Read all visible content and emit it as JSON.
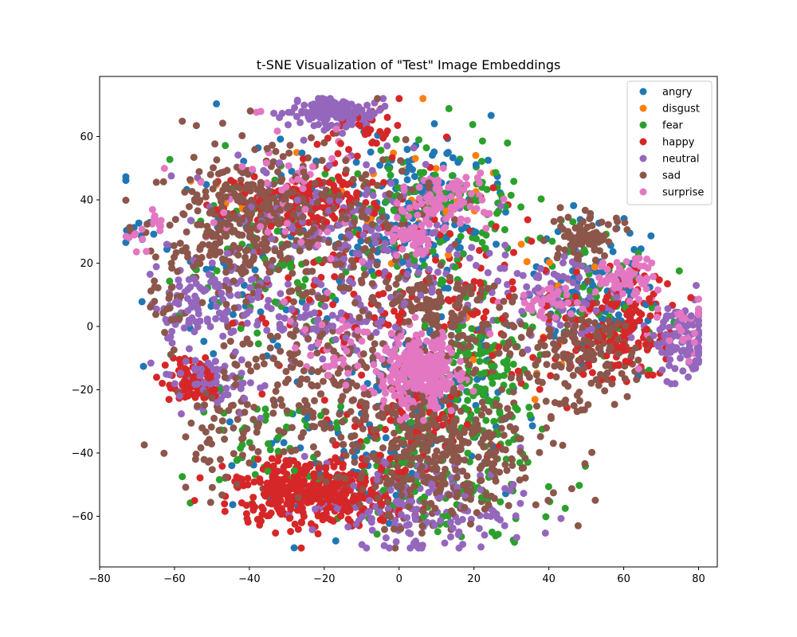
{
  "chart_data": {
    "type": "scatter",
    "title": "t-SNE Visualization of \"Test\" Image Embeddings",
    "xlabel": "",
    "ylabel": "",
    "xlim": [
      -80,
      85
    ],
    "ylim": [
      -76,
      79
    ],
    "xticks": [
      -80,
      -60,
      -40,
      -20,
      0,
      20,
      40,
      60,
      80
    ],
    "yticks": [
      -60,
      -40,
      -20,
      0,
      20,
      40,
      60
    ],
    "grid": false,
    "legend_position": "top-right",
    "series": [
      {
        "name": "angry",
        "color": "#1f77b4",
        "clusters": [
          {
            "cx": 5,
            "cy": 38,
            "sx": 9,
            "sy": 12,
            "n": 160
          },
          {
            "cx": 50,
            "cy": 12,
            "sx": 8,
            "sy": 12,
            "n": 100
          },
          {
            "cx": 10,
            "cy": -18,
            "sx": 10,
            "sy": 10,
            "n": 110
          },
          {
            "cx": -35,
            "cy": 22,
            "sx": 14,
            "sy": 18,
            "n": 90
          },
          {
            "cx": -15,
            "cy": -40,
            "sx": 16,
            "sy": 12,
            "n": 80
          },
          {
            "cx": -72,
            "cy": 29,
            "sx": 1.5,
            "sy": 2,
            "n": 10
          }
        ]
      },
      {
        "name": "disgust",
        "color": "#ff7f0e",
        "clusters": [
          {
            "cx": 5,
            "cy": 40,
            "sx": 10,
            "sy": 12,
            "n": 25
          },
          {
            "cx": 30,
            "cy": 20,
            "sx": 10,
            "sy": 10,
            "n": 12
          },
          {
            "cx": 35,
            "cy": -12,
            "sx": 10,
            "sy": 8,
            "n": 8
          },
          {
            "cx": -45,
            "cy": 40,
            "sx": 8,
            "sy": 6,
            "n": 8
          }
        ]
      },
      {
        "name": "fear",
        "color": "#2ca02c",
        "clusters": [
          {
            "cx": 22,
            "cy": -15,
            "sx": 8,
            "sy": 12,
            "n": 160
          },
          {
            "cx": 10,
            "cy": 35,
            "sx": 12,
            "sy": 12,
            "n": 130
          },
          {
            "cx": 10,
            "cy": -45,
            "sx": 14,
            "sy": 12,
            "n": 120
          },
          {
            "cx": -35,
            "cy": 25,
            "sx": 14,
            "sy": 18,
            "n": 90
          },
          {
            "cx": 50,
            "cy": 10,
            "sx": 10,
            "sy": 14,
            "n": 60
          },
          {
            "cx": -35,
            "cy": -40,
            "sx": 10,
            "sy": 10,
            "n": 50
          }
        ]
      },
      {
        "name": "happy",
        "color": "#d62728",
        "clusters": [
          {
            "cx": -22,
            "cy": -52,
            "sx": 11,
            "sy": 5,
            "n": 420
          },
          {
            "cx": -55,
            "cy": -18,
            "sx": 4,
            "sy": 4,
            "n": 90
          },
          {
            "cx": -25,
            "cy": 40,
            "sx": 10,
            "sy": 5,
            "n": 170
          },
          {
            "cx": 62,
            "cy": 2,
            "sx": 6,
            "sy": 8,
            "n": 110
          },
          {
            "cx": 50,
            "cy": -5,
            "sx": 8,
            "sy": 8,
            "n": 60
          },
          {
            "cx": -10,
            "cy": 62,
            "sx": 6,
            "sy": 4,
            "n": 40
          },
          {
            "cx": 5,
            "cy": -30,
            "sx": 10,
            "sy": 8,
            "n": 80
          },
          {
            "cx": -10,
            "cy": 15,
            "sx": 18,
            "sy": 14,
            "n": 110
          },
          {
            "cx": 25,
            "cy": 10,
            "sx": 10,
            "sy": 12,
            "n": 50
          }
        ]
      },
      {
        "name": "neutral",
        "color": "#9467bd",
        "clusters": [
          {
            "cx": -18,
            "cy": 68,
            "sx": 6,
            "sy": 2.5,
            "n": 150
          },
          {
            "cx": 75,
            "cy": -5,
            "sx": 5,
            "sy": 6,
            "n": 110
          },
          {
            "cx": -50,
            "cy": 8,
            "sx": 7,
            "sy": 6,
            "n": 90
          },
          {
            "cx": -50,
            "cy": -18,
            "sx": 7,
            "sy": 5,
            "n": 70
          },
          {
            "cx": 5,
            "cy": -58,
            "sx": 14,
            "sy": 7,
            "n": 170
          },
          {
            "cx": -15,
            "cy": 28,
            "sx": 18,
            "sy": 14,
            "n": 200
          },
          {
            "cx": 40,
            "cy": 10,
            "sx": 10,
            "sy": 8,
            "n": 80
          },
          {
            "cx": -20,
            "cy": 0,
            "sx": 10,
            "sy": 5,
            "n": 70
          },
          {
            "cx": -60,
            "cy": 2,
            "sx": 2,
            "sy": 4,
            "n": 18
          }
        ]
      },
      {
        "name": "sad",
        "color": "#8c564b",
        "clusters": [
          {
            "cx": -40,
            "cy": 35,
            "sx": 10,
            "sy": 10,
            "n": 280
          },
          {
            "cx": 10,
            "cy": -40,
            "sx": 14,
            "sy": 10,
            "n": 380
          },
          {
            "cx": 50,
            "cy": 28,
            "sx": 4,
            "sy": 4,
            "n": 90
          },
          {
            "cx": 50,
            "cy": -8,
            "sx": 8,
            "sy": 8,
            "n": 150
          },
          {
            "cx": -20,
            "cy": -15,
            "sx": 14,
            "sy": 12,
            "n": 180
          },
          {
            "cx": -20,
            "cy": 30,
            "sx": 16,
            "sy": 14,
            "n": 200
          },
          {
            "cx": 10,
            "cy": 5,
            "sx": 8,
            "sy": 6,
            "n": 90
          },
          {
            "cx": -45,
            "cy": -35,
            "sx": 8,
            "sy": 8,
            "n": 60
          },
          {
            "cx": 25,
            "cy": -5,
            "sx": 8,
            "sy": 8,
            "n": 60
          },
          {
            "cx": -62,
            "cy": 10,
            "sx": 3,
            "sy": 8,
            "n": 30
          }
        ]
      },
      {
        "name": "surprise",
        "color": "#e377c2",
        "clusters": [
          {
            "cx": 5,
            "cy": -15,
            "sx": 5,
            "sy": 6,
            "n": 320
          },
          {
            "cx": 12,
            "cy": 40,
            "sx": 6,
            "sy": 4,
            "n": 90
          },
          {
            "cx": 3,
            "cy": 28,
            "sx": 3,
            "sy": 3,
            "n": 50
          },
          {
            "cx": 60,
            "cy": 15,
            "sx": 4,
            "sy": 3,
            "n": 70
          },
          {
            "cx": 40,
            "cy": 8,
            "sx": 5,
            "sy": 3,
            "n": 40
          },
          {
            "cx": 75,
            "cy": 0,
            "sx": 5,
            "sy": 6,
            "n": 30
          },
          {
            "cx": -15,
            "cy": -8,
            "sx": 6,
            "sy": 5,
            "n": 40
          },
          {
            "cx": -30,
            "cy": 40,
            "sx": 12,
            "sy": 12,
            "n": 50
          },
          {
            "cx": -65,
            "cy": 33,
            "sx": 2,
            "sy": 2,
            "n": 10
          },
          {
            "cx": -70,
            "cy": 27,
            "sx": 2,
            "sy": 3,
            "n": 8
          }
        ]
      }
    ]
  }
}
